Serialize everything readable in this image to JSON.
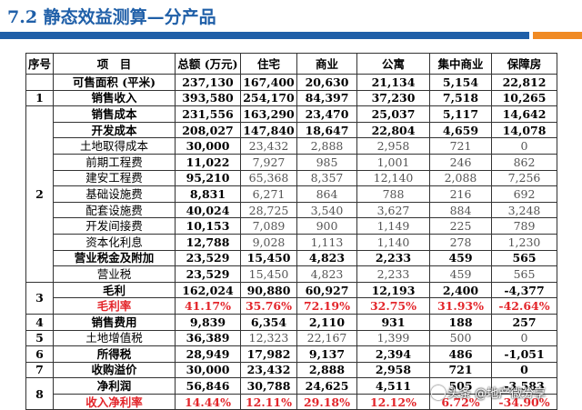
{
  "title": "7.2 静态效益测算—分产品",
  "header": [
    "序号",
    "项　目",
    "总额 (万元)",
    "住宅",
    "商业",
    "公寓",
    "集中商业",
    "保障房"
  ],
  "rows": [
    {
      "idx": "",
      "name": "可售面积 (平米)",
      "vals": [
        "237,130",
        "167,400",
        "20,630",
        "21,134",
        "5,154",
        "22,812"
      ],
      "style": "b"
    },
    {
      "idx": "1",
      "name": "销售收入",
      "vals": [
        "393,580",
        "254,170",
        "84,397",
        "37,230",
        "7,518",
        "10,265"
      ],
      "style": "b"
    },
    {
      "idx": "",
      "name": "销售成本",
      "vals": [
        "231,556",
        "163,290",
        "23,470",
        "25,037",
        "5,117",
        "14,642"
      ],
      "style": "b"
    },
    {
      "idx": "",
      "name": "开发成本",
      "vals": [
        "208,027",
        "147,840",
        "18,647",
        "22,804",
        "4,659",
        "14,078"
      ],
      "style": "b"
    },
    {
      "idx": "",
      "name": "土地取得成本",
      "vals": [
        "30,000",
        "23,432",
        "2,888",
        "2,958",
        "721",
        "0"
      ],
      "style": "n"
    },
    {
      "idx": "",
      "name": "前期工程费",
      "vals": [
        "11,022",
        "7,927",
        "985",
        "1,001",
        "246",
        "862"
      ],
      "style": "n"
    },
    {
      "idx": "2",
      "name": "建安工程费",
      "vals": [
        "95,210",
        "65,368",
        "8,357",
        "12,140",
        "2,088",
        "7,256"
      ],
      "style": "n"
    },
    {
      "idx": "",
      "name": "基础设施费",
      "vals": [
        "8,831",
        "6,271",
        "864",
        "788",
        "216",
        "692"
      ],
      "style": "n"
    },
    {
      "idx": "",
      "name": "配套设施费",
      "vals": [
        "40,024",
        "28,725",
        "3,540",
        "3,627",
        "884",
        "3,248"
      ],
      "style": "n"
    },
    {
      "idx": "",
      "name": "开发间接费",
      "vals": [
        "10,153",
        "7,089",
        "900",
        "1,149",
        "225",
        "789"
      ],
      "style": "n"
    },
    {
      "idx": "",
      "name": "资本化利息",
      "vals": [
        "12,788",
        "9,028",
        "1,113",
        "1,140",
        "278",
        "1,230"
      ],
      "style": "n"
    },
    {
      "idx": "",
      "name": "营业税金及附加",
      "vals": [
        "23,529",
        "15,450",
        "4,823",
        "2,233",
        "459",
        "565"
      ],
      "style": "b"
    },
    {
      "idx": "",
      "name": "营业税",
      "vals": [
        "23,529",
        "15,450",
        "4,823",
        "2,233",
        "459",
        "565"
      ],
      "style": "n"
    },
    {
      "idx": "3",
      "name": "毛利",
      "vals": [
        "162,024",
        "90,880",
        "60,927",
        "12,193",
        "2,400",
        "-4,377"
      ],
      "style": "b"
    },
    {
      "idx": "",
      "name": "毛利率",
      "vals": [
        "41.17%",
        "35.76%",
        "72.19%",
        "32.75%",
        "31.93%",
        "-42.64%"
      ],
      "style": "red"
    },
    {
      "idx": "4",
      "name": "销售费用",
      "vals": [
        "9,839",
        "6,354",
        "2,110",
        "931",
        "188",
        "257"
      ],
      "style": "b"
    },
    {
      "idx": "5",
      "name": "土地增值税",
      "vals": [
        "36,389",
        "12,323",
        "22,167",
        "1,399",
        "500",
        "0"
      ],
      "style": "n"
    },
    {
      "idx": "6",
      "name": "所得税",
      "vals": [
        "28,949",
        "17,982",
        "9,137",
        "2,394",
        "486",
        "-1,051"
      ],
      "style": "b"
    },
    {
      "idx": "7",
      "name": "收购溢价",
      "vals": [
        "30,000",
        "23,432",
        "2,888",
        "2,958",
        "721",
        "0"
      ],
      "style": "b"
    },
    {
      "idx": "8",
      "name": "净利润",
      "vals": [
        "56,846",
        "30,788",
        "24,625",
        "4,511",
        "505",
        "-3,583"
      ],
      "style": "b"
    },
    {
      "idx": "",
      "name": "收入净利率",
      "vals": [
        "14.44%",
        "12.11%",
        "29.18%",
        "12.12%",
        "6.72%",
        "-34.90%"
      ],
      "style": "red"
    }
  ],
  "watermark": "头条 @地产微分享",
  "colors": {
    "accent": "#1f5fa8",
    "accent2": "#f08a24",
    "negative": "#e3262b"
  }
}
